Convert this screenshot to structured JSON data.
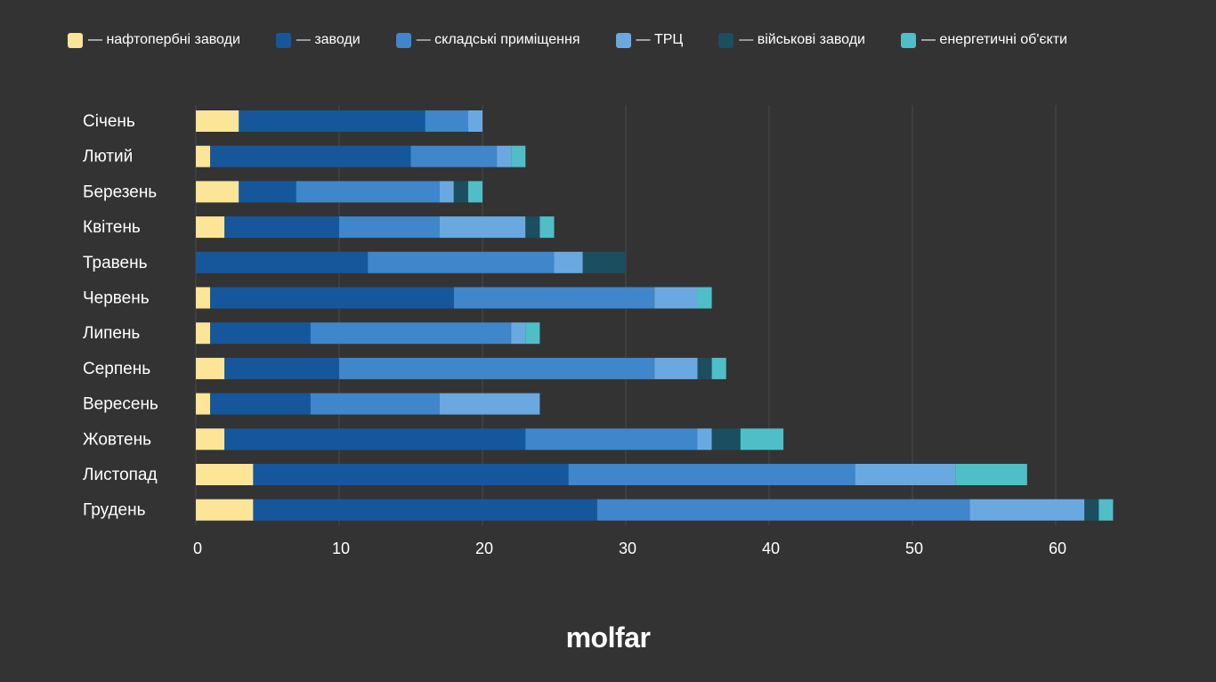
{
  "chart_data": {
    "type": "bar",
    "orientation": "horizontal",
    "stacked": true,
    "categories": [
      "Січень",
      "Лютий",
      "Березень",
      "Квітень",
      "Травень",
      "Червень",
      "Липень",
      "Серпень",
      "Вересень",
      "Жовтень",
      "Листопад",
      "Грудень"
    ],
    "series": [
      {
        "name": "— нафтопербні заводи",
        "color": "#fde598",
        "values": [
          3,
          1,
          3,
          2,
          0,
          1,
          1,
          2,
          1,
          2,
          4,
          4
        ]
      },
      {
        "name": "— заводи",
        "color": "#16579b",
        "values": [
          13,
          14,
          4,
          8,
          12,
          17,
          7,
          8,
          7,
          21,
          22,
          24
        ]
      },
      {
        "name": "— складські приміщення",
        "color": "#3f86cb",
        "values": [
          3,
          6,
          10,
          7,
          13,
          14,
          14,
          22,
          9,
          12,
          20,
          26
        ]
      },
      {
        "name": "— ТРЦ",
        "color": "#6aa9e0",
        "values": [
          1,
          1,
          1,
          6,
          2,
          3,
          1,
          3,
          7,
          1,
          7,
          8
        ]
      },
      {
        "name": "— військові заводи",
        "color": "#1b4e5e",
        "values": [
          0,
          0,
          1,
          1,
          3,
          0,
          0,
          1,
          0,
          2,
          0,
          1
        ]
      },
      {
        "name": "— енергетичні об'єкти",
        "color": "#4fbec7",
        "values": [
          0,
          1,
          1,
          1,
          0,
          1,
          1,
          1,
          0,
          3,
          5,
          1
        ]
      }
    ],
    "x_ticks": [
      0,
      10,
      20,
      30,
      40,
      50,
      60
    ],
    "xlim": [
      0,
      64
    ],
    "grid": "vertical",
    "legend_position": "top"
  },
  "brand": {
    "logo_text": "molfar"
  },
  "colors": {
    "background": "#333333",
    "grid": "#4a4a4a",
    "text": "#ffffff"
  }
}
